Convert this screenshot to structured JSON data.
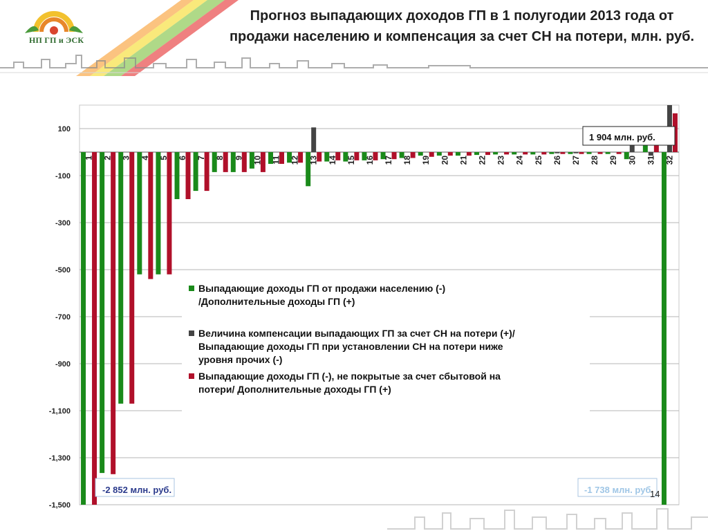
{
  "slide": {
    "title": "Прогноз выпадающих доходов ГП в 1 полугодии 2013 года от продажи населению и компенсация за счет СН на потери, млн. руб.",
    "logo_text": "НП ГП и ЭСК",
    "page_number": "14"
  },
  "chart_data": {
    "type": "bar",
    "categories": [
      "1",
      "2",
      "3",
      "4",
      "5",
      "6",
      "7",
      "8",
      "9",
      "10",
      "11",
      "12",
      "13",
      "14",
      "15",
      "16",
      "17",
      "18",
      "19",
      "20",
      "21",
      "22",
      "23",
      "24",
      "25",
      "26",
      "27",
      "28",
      "29",
      "30",
      "31",
      "32"
    ],
    "yticks": [
      "100",
      "-100",
      "-300",
      "-500",
      "-700",
      "-900",
      "-1,100",
      "-1,300",
      "-1,500"
    ],
    "ylim": [
      -1500,
      200
    ],
    "grid": true,
    "series": [
      {
        "name": "Выпадающие доходы ГП от продажи населению (-) /Дополнительные доходы ГП (+)",
        "color": "#1a8a1a",
        "values": [
          -1500,
          -1365,
          -1070,
          -520,
          -520,
          -200,
          -165,
          -85,
          -85,
          -70,
          -50,
          -45,
          -145,
          -40,
          -40,
          -35,
          -30,
          -25,
          -15,
          -15,
          -15,
          -12,
          -10,
          -10,
          -10,
          -8,
          -8,
          -8,
          -8,
          -30,
          30,
          -1500
        ]
      },
      {
        "name": "Величина компенсации выпадающих ГП за счет СН на потери (+)/ Выпадающие доходы ГП при установлении СН на потери ниже уровня прочих (-)",
        "color": "#444444",
        "values": [
          0,
          0,
          0,
          0,
          0,
          0,
          0,
          0,
          0,
          0,
          0,
          0,
          105,
          0,
          0,
          0,
          0,
          0,
          0,
          0,
          0,
          0,
          0,
          0,
          0,
          -5,
          -5,
          0,
          0,
          30,
          -15,
          200
        ]
      },
      {
        "name": "Выпадающие доходы ГП (-), не покрытые за счет сбытовой на потери/ Дополнительные доходы ГП (+)",
        "color": "#b0102a",
        "values": [
          -1500,
          -1370,
          -1070,
          -540,
          -520,
          -200,
          -165,
          -85,
          -85,
          -85,
          -50,
          -45,
          -40,
          -35,
          -35,
          -35,
          -30,
          -25,
          -20,
          -15,
          -15,
          -12,
          -10,
          -10,
          -10,
          -8,
          -8,
          -8,
          -8,
          0,
          30,
          165
        ]
      }
    ],
    "annotations": [
      {
        "text": "1 904 млн. руб."
      },
      {
        "text": "-2 852 млн. руб."
      },
      {
        "text": "-1 738 млн. руб."
      }
    ],
    "legend_position": "center"
  }
}
